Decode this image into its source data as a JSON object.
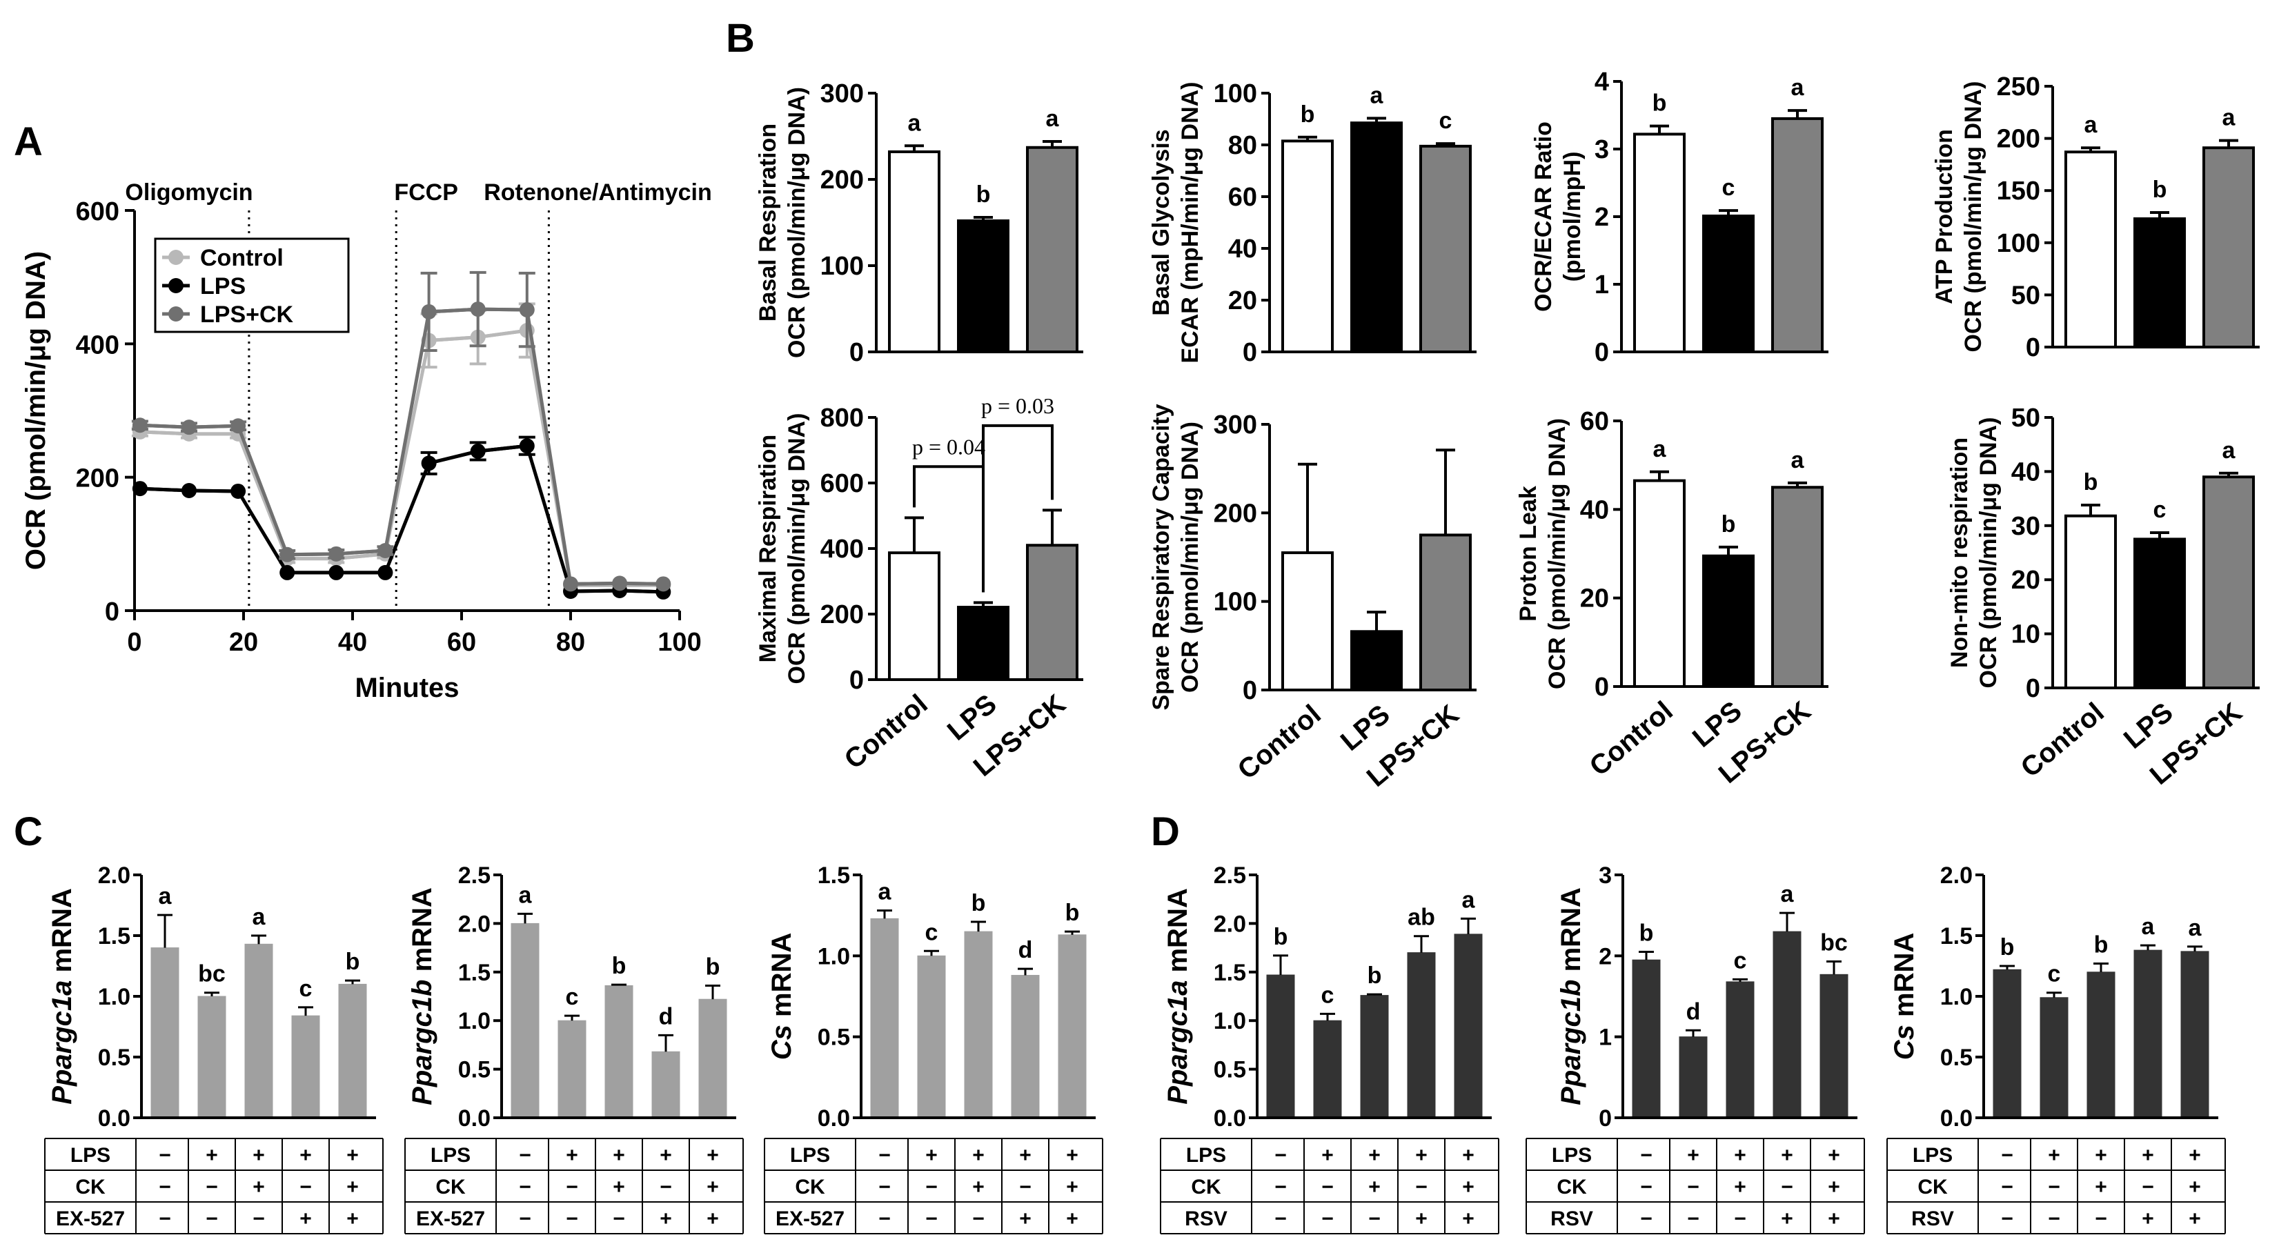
{
  "panels": {
    "A": "A",
    "B": "B",
    "C": "C",
    "D": "D"
  },
  "colors": {
    "control_line": "#b8b8b8",
    "lps_line": "#000000",
    "lpsck_line": "#707070",
    "control_bar": "#ffffff",
    "lps_bar": "#000000",
    "lpsck_bar": "#808080",
    "panel_c_bar": "#a0a0a0",
    "panel_d_bar": "#333333"
  },
  "chart_data": [
    {
      "id": "A",
      "type": "line",
      "title": "",
      "xlabel": "Minutes",
      "ylabel": "OCR (pmol/min/μg DNA)",
      "xlim": [
        0,
        100
      ],
      "ylim": [
        0,
        600
      ],
      "xticks": [
        "0",
        "20",
        "40",
        "60",
        "80",
        "100"
      ],
      "yticks": [
        "0",
        "200",
        "400",
        "600"
      ],
      "injections": [
        {
          "label": "Oligomycin",
          "x": 21
        },
        {
          "label": "FCCP",
          "x": 48
        },
        {
          "label": "Rotenone/Antimycin",
          "x": 76
        }
      ],
      "legend": [
        "Control",
        "LPS",
        "LPS+CK"
      ],
      "x": [
        1,
        10,
        19,
        28,
        37,
        46,
        54,
        63,
        72,
        80,
        89,
        97
      ],
      "series": [
        {
          "name": "Control",
          "values": [
            268,
            265,
            265,
            78,
            78,
            85,
            405,
            410,
            420,
            38,
            38,
            38
          ],
          "errors": [
            6,
            6,
            6,
            6,
            6,
            6,
            40,
            40,
            40,
            4,
            4,
            4
          ]
        },
        {
          "name": "LPS",
          "values": [
            183,
            180,
            179,
            57,
            57,
            57,
            221,
            239,
            247,
            29,
            30,
            28
          ],
          "errors": [
            4,
            4,
            4,
            3,
            3,
            3,
            16,
            13,
            13,
            3,
            3,
            3
          ]
        },
        {
          "name": "LPS+CK",
          "values": [
            278,
            275,
            277,
            84,
            85,
            90,
            448,
            452,
            451,
            40,
            41,
            40
          ],
          "errors": [
            6,
            6,
            6,
            6,
            6,
            6,
            58,
            55,
            55,
            5,
            5,
            5
          ]
        }
      ]
    },
    {
      "id": "B1",
      "type": "bar",
      "ylabel_top": "Basal Respiration",
      "ylabel_bottom": "OCR (pmol/min/μg DNA)",
      "categories": [
        "Control",
        "LPS",
        "LPS+CK"
      ],
      "values": [
        232,
        152,
        237
      ],
      "errors": [
        7,
        4,
        7
      ],
      "letters": [
        "a",
        "b",
        "a"
      ],
      "ylim": [
        0,
        300
      ],
      "yticks": [
        "0",
        "100",
        "200",
        "300"
      ]
    },
    {
      "id": "B2",
      "type": "bar",
      "ylabel_top": "Basal Glycolysis",
      "ylabel_bottom": "ECAR (mpH/min/μg DNA)",
      "categories": [
        "Control",
        "LPS",
        "LPS+CK"
      ],
      "values": [
        81.5,
        88.5,
        79.5
      ],
      "errors": [
        1.5,
        1.8,
        1
      ],
      "letters": [
        "b",
        "a",
        "c"
      ],
      "ylim": [
        0,
        100
      ],
      "yticks": [
        "0",
        "20",
        "40",
        "60",
        "80",
        "100"
      ]
    },
    {
      "id": "B3",
      "type": "bar",
      "ylabel_top": "OCR/ECAR Ratio",
      "ylabel_bottom": "(pmol/mpH)",
      "categories": [
        "Control",
        "LPS",
        "LPS+CK"
      ],
      "values": [
        3.22,
        2.01,
        3.45
      ],
      "errors": [
        0.12,
        0.08,
        0.12
      ],
      "letters": [
        "b",
        "c",
        "a"
      ],
      "ylim": [
        0,
        4
      ],
      "yticks": [
        "0",
        "1",
        "2",
        "3",
        "4"
      ]
    },
    {
      "id": "B4",
      "type": "bar",
      "ylabel_top": "ATP Production",
      "ylabel_bottom": "OCR (pmol/min/μg DNA)",
      "categories": [
        "Control",
        "LPS",
        "LPS+CK"
      ],
      "values": [
        187,
        123,
        191
      ],
      "errors": [
        4,
        6,
        7
      ],
      "letters": [
        "a",
        "b",
        "a"
      ],
      "ylim": [
        0,
        250
      ],
      "yticks": [
        "0",
        "50",
        "100",
        "150",
        "200",
        "250"
      ]
    },
    {
      "id": "B5",
      "type": "bar",
      "ylabel_top": "Maximal Respiration",
      "ylabel_bottom": "OCR (pmol/min/μg DNA)",
      "categories": [
        "Control",
        "LPS",
        "LPS+CK"
      ],
      "values": [
        387,
        221,
        410
      ],
      "errors": [
        107,
        14,
        107
      ],
      "letters": [
        "",
        "",
        ""
      ],
      "ylim": [
        0,
        800
      ],
      "yticks": [
        "0",
        "200",
        "400",
        "600",
        "800"
      ],
      "brackets": [
        {
          "from": 0,
          "to": 1,
          "label": "p = 0.04",
          "y": 650
        },
        {
          "from": 1,
          "to": 2,
          "label": "p = 0.03",
          "y": 775
        }
      ]
    },
    {
      "id": "B6",
      "type": "bar",
      "ylabel_top": "Spare Respiratory Capacity",
      "ylabel_bottom": "OCR (pmol/min/μg DNA)",
      "categories": [
        "Control",
        "LPS",
        "LPS+CK"
      ],
      "values": [
        155,
        66,
        175
      ],
      "errors": [
        100,
        22,
        96
      ],
      "letters": [
        "",
        "",
        ""
      ],
      "ylim": [
        0,
        300
      ],
      "yticks": [
        "0",
        "100",
        "200",
        "300"
      ]
    },
    {
      "id": "B7",
      "type": "bar",
      "ylabel_top": "Proton Leak",
      "ylabel_bottom": "OCR (pmol/min/μg DNA)",
      "categories": [
        "Control",
        "LPS",
        "LPS+CK"
      ],
      "values": [
        46.5,
        29.5,
        45
      ],
      "errors": [
        2,
        2,
        1
      ],
      "letters": [
        "a",
        "b",
        "a"
      ],
      "ylim": [
        0,
        60
      ],
      "yticks": [
        "0",
        "20",
        "40",
        "60"
      ]
    },
    {
      "id": "B8",
      "type": "bar",
      "ylabel_top": "Non-mito respiration",
      "ylabel_bottom": "OCR (pmol/min/μg DNA)",
      "categories": [
        "Control",
        "LPS",
        "LPS+CK"
      ],
      "values": [
        31.8,
        27.5,
        39
      ],
      "errors": [
        2,
        1.2,
        0.7
      ],
      "letters": [
        "b",
        "c",
        "a"
      ],
      "ylim": [
        0,
        50
      ],
      "yticks": [
        "0",
        "10",
        "20",
        "30",
        "40",
        "50"
      ]
    },
    {
      "id": "C1",
      "type": "bar",
      "ylabel_italic": "Ppargc1a",
      "ylabel_rest": " mRNA",
      "values": [
        1.4,
        1.0,
        1.43,
        0.84,
        1.1
      ],
      "errors": [
        0.27,
        0.03,
        0.07,
        0.07,
        0.03
      ],
      "letters": [
        "a",
        "bc",
        "a",
        "c",
        "b"
      ],
      "ylim": [
        0,
        2.0
      ],
      "yticks": [
        "0.0",
        "0.5",
        "1.0",
        "1.5",
        "2.0"
      ],
      "table": {
        "rows": [
          "LPS",
          "CK",
          "EX-527"
        ],
        "cells": [
          [
            "−",
            "+",
            "+",
            "+",
            "+"
          ],
          [
            "−",
            "−",
            "+",
            "−",
            "+"
          ],
          [
            "−",
            "−",
            "−",
            "+",
            "+"
          ]
        ]
      }
    },
    {
      "id": "C2",
      "type": "bar",
      "ylabel_italic": "Ppargc1b",
      "ylabel_rest": " mRNA",
      "values": [
        2.0,
        1.0,
        1.36,
        0.68,
        1.22
      ],
      "errors": [
        0.1,
        0.05,
        0.01,
        0.17,
        0.14
      ],
      "letters": [
        "a",
        "c",
        "b",
        "d",
        "b"
      ],
      "ylim": [
        0,
        2.5
      ],
      "yticks": [
        "0.0",
        "0.5",
        "1.0",
        "1.5",
        "2.0",
        "2.5"
      ],
      "table": {
        "rows": [
          "LPS",
          "CK",
          "EX-527"
        ],
        "cells": [
          [
            "−",
            "+",
            "+",
            "+",
            "+"
          ],
          [
            "−",
            "−",
            "+",
            "−",
            "+"
          ],
          [
            "−",
            "−",
            "−",
            "+",
            "+"
          ]
        ]
      }
    },
    {
      "id": "C3",
      "type": "bar",
      "ylabel_italic": "Cs",
      "ylabel_rest": " mRNA",
      "values": [
        1.23,
        1.0,
        1.15,
        0.88,
        1.13
      ],
      "errors": [
        0.05,
        0.03,
        0.06,
        0.04,
        0.02
      ],
      "letters": [
        "a",
        "c",
        "b",
        "d",
        "b"
      ],
      "ylim": [
        0,
        1.5
      ],
      "yticks": [
        "0.0",
        "0.5",
        "1.0",
        "1.5"
      ],
      "table": {
        "rows": [
          "LPS",
          "CK",
          "EX-527"
        ],
        "cells": [
          [
            "−",
            "+",
            "+",
            "+",
            "+"
          ],
          [
            "−",
            "−",
            "+",
            "−",
            "+"
          ],
          [
            "−",
            "−",
            "−",
            "+",
            "+"
          ]
        ]
      }
    },
    {
      "id": "D1",
      "type": "bar",
      "ylabel_italic": "Ppargc1a",
      "ylabel_rest": " mRNA",
      "values": [
        1.47,
        1.0,
        1.26,
        1.7,
        1.89
      ],
      "errors": [
        0.2,
        0.07,
        0.01,
        0.17,
        0.16
      ],
      "letters": [
        "b",
        "c",
        "b",
        "ab",
        "a"
      ],
      "ylim": [
        0,
        2.5
      ],
      "yticks": [
        "0.0",
        "0.5",
        "1.0",
        "1.5",
        "2.0",
        "2.5"
      ],
      "table": {
        "rows": [
          "LPS",
          "CK",
          "RSV"
        ],
        "cells": [
          [
            "−",
            "+",
            "+",
            "+",
            "+"
          ],
          [
            "−",
            "−",
            "+",
            "−",
            "+"
          ],
          [
            "−",
            "−",
            "−",
            "+",
            "+"
          ]
        ]
      }
    },
    {
      "id": "D2",
      "type": "bar",
      "ylabel_italic": "Ppargc1b",
      "ylabel_rest": " mRNA",
      "values": [
        1.95,
        1.0,
        1.68,
        2.3,
        1.77
      ],
      "errors": [
        0.1,
        0.08,
        0.03,
        0.23,
        0.16
      ],
      "letters": [
        "b",
        "d",
        "c",
        "a",
        "bc"
      ],
      "ylim": [
        0,
        3
      ],
      "yticks": [
        "0",
        "1",
        "2",
        "3"
      ],
      "table": {
        "rows": [
          "LPS",
          "CK",
          "RSV"
        ],
        "cells": [
          [
            "−",
            "+",
            "+",
            "+",
            "+"
          ],
          [
            "−",
            "−",
            "+",
            "−",
            "+"
          ],
          [
            "−",
            "−",
            "−",
            "+",
            "+"
          ]
        ]
      }
    },
    {
      "id": "D3",
      "type": "bar",
      "ylabel_italic": "Cs",
      "ylabel_rest": " mRNA",
      "values": [
        1.22,
        0.99,
        1.2,
        1.38,
        1.37
      ],
      "errors": [
        0.03,
        0.04,
        0.07,
        0.04,
        0.04
      ],
      "letters": [
        "b",
        "c",
        "b",
        "a",
        "a"
      ],
      "ylim": [
        0,
        2.0
      ],
      "yticks": [
        "0.0",
        "0.5",
        "1.0",
        "1.5",
        "2.0"
      ],
      "table": {
        "rows": [
          "LPS",
          "CK",
          "RSV"
        ],
        "cells": [
          [
            "−",
            "+",
            "+",
            "+",
            "+"
          ],
          [
            "−",
            "−",
            "+",
            "−",
            "+"
          ],
          [
            "−",
            "−",
            "−",
            "+",
            "+"
          ]
        ]
      }
    }
  ]
}
